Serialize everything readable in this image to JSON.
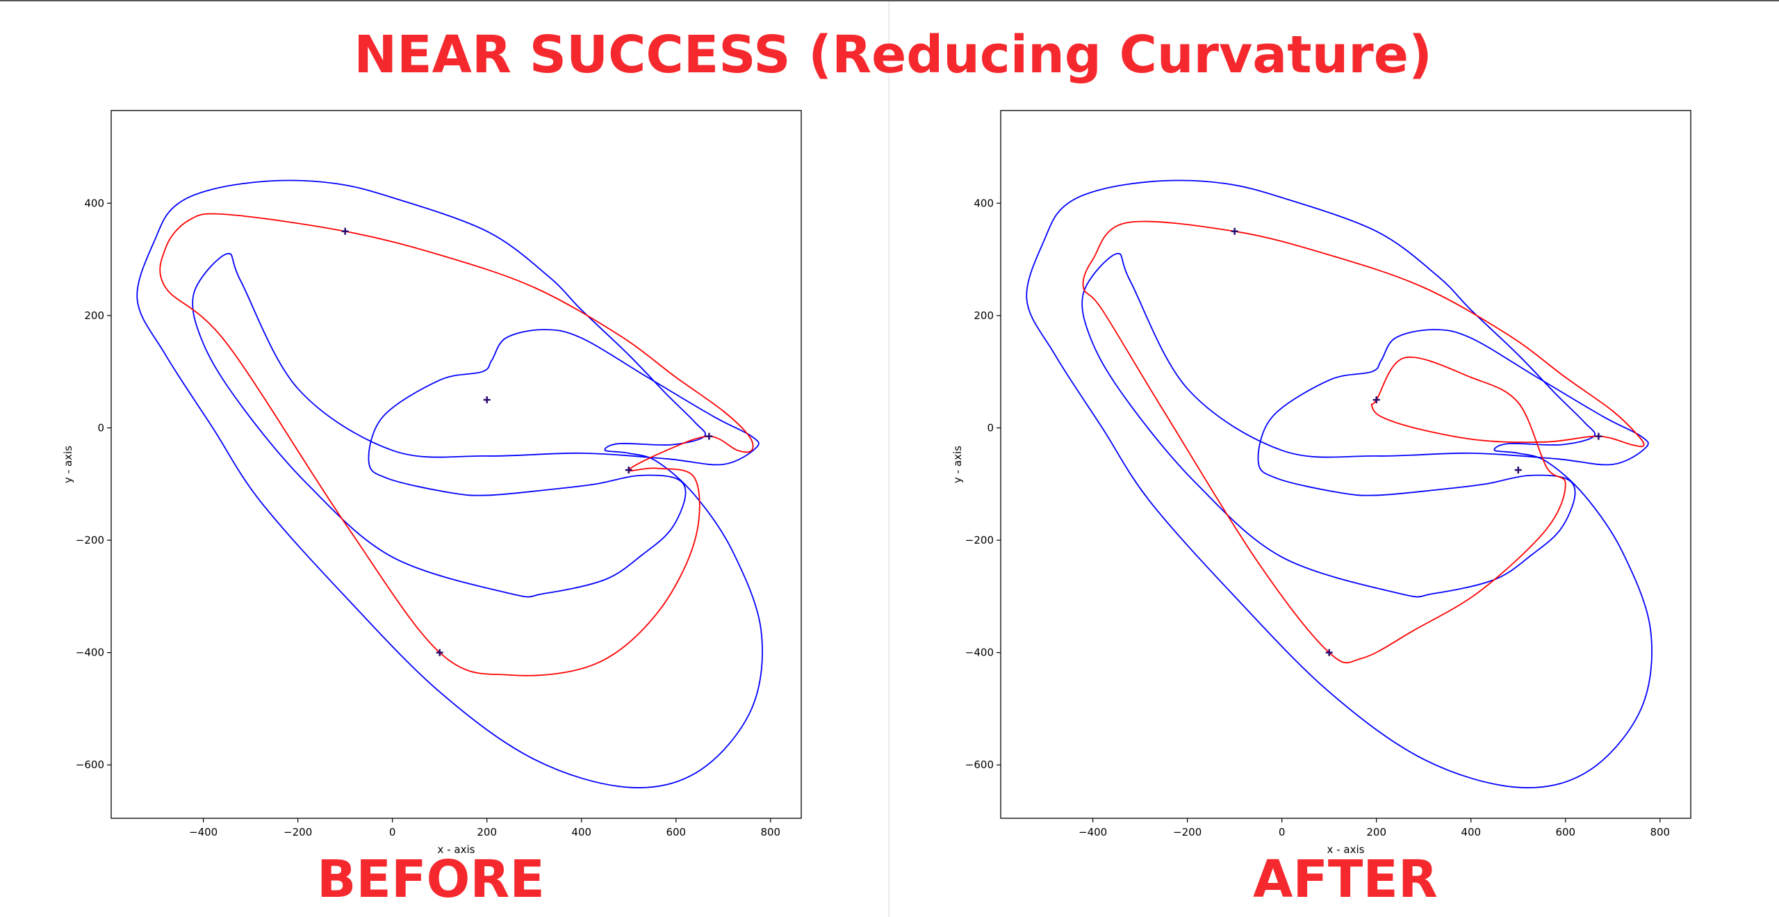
{
  "figure": {
    "title": "NEAR SUCCESS (Reducing Curvature)",
    "title_color": "#f5282d",
    "boundary_color": "#0000ff",
    "path_color": "#ff0000",
    "marker_color": "#2a0a6e"
  },
  "chart_data": [
    {
      "type": "line",
      "caption": "BEFORE",
      "xlabel": "x - axis",
      "ylabel": "y - axis",
      "xlim": [
        -595,
        865
      ],
      "ylim": [
        -695,
        565
      ],
      "xticks": [
        -400,
        -200,
        0,
        200,
        400,
        600,
        800
      ],
      "yticks": [
        400,
        200,
        0,
        -200,
        -400,
        -600
      ],
      "xtick_labels": [
        "−400",
        "−200",
        "0",
        "200",
        "400",
        "600",
        "800"
      ],
      "ytick_labels": [
        "400",
        "200",
        "0",
        "−200",
        "−400",
        "−600"
      ],
      "grid": false,
      "series": [
        {
          "role": "outer-boundary",
          "closed": true,
          "x": [
            -500,
            -540,
            -480,
            -380,
            -280,
            -100,
            100,
            300,
            500,
            650,
            760,
            780,
            720,
            640,
            560,
            500,
            450,
            480,
            590,
            660,
            640,
            580,
            500,
            400,
            330,
            200,
            0,
            -120,
            -250,
            -380,
            -460
          ],
          "y": [
            340,
            230,
            130,
            0,
            -130,
            -300,
            -470,
            -590,
            -640,
            -610,
            -500,
            -360,
            -220,
            -120,
            -60,
            -45,
            -40,
            -28,
            -30,
            -15,
            10,
            60,
            130,
            210,
            270,
            350,
            410,
            435,
            440,
            425,
            395
          ]
        },
        {
          "role": "inner-boundary",
          "closed": true,
          "x": [
            -350,
            -420,
            -400,
            -320,
            -180,
            0,
            250,
            320,
            450,
            530,
            590,
            620,
            600,
            520,
            430,
            330,
            200,
            120,
            -10,
            -50,
            -20,
            100,
            190,
            210,
            240,
            320,
            400,
            540,
            680,
            760,
            770,
            700,
            580,
            400,
            200,
            0,
            -200,
            -320
          ],
          "y": [
            310,
            240,
            150,
            40,
            -100,
            -230,
            -295,
            -295,
            -270,
            -225,
            -180,
            -120,
            -90,
            -85,
            -100,
            -110,
            -120,
            -115,
            -90,
            -60,
            20,
            85,
            100,
            120,
            160,
            175,
            160,
            90,
            20,
            -15,
            -35,
            -65,
            -55,
            -45,
            -50,
            -40,
            70,
            260
          ]
        },
        {
          "role": "planned-path",
          "closed": true,
          "x": [
            -100,
            100,
            300,
            480,
            600,
            700,
            755,
            760,
            730,
            670,
            580,
            500,
            560,
            640,
            640,
            560,
            430,
            250,
            100,
            -100,
            -350,
            -480,
            -480,
            -430,
            -350
          ],
          "y": [
            350,
            308,
            250,
            165,
            90,
            30,
            -15,
            -40,
            -40,
            -15,
            -40,
            -75,
            -72,
            -90,
            -200,
            -330,
            -420,
            -440,
            -400,
            -170,
            150,
            250,
            320,
            370,
            380
          ]
        },
        {
          "role": "waypoints",
          "closed": false,
          "x": [
            -100,
            200,
            670,
            500,
            100
          ],
          "y": [
            350,
            50,
            -15,
            -75,
            -400
          ]
        }
      ]
    },
    {
      "type": "line",
      "caption": "AFTER",
      "xlabel": "x - axis",
      "ylabel": "y - axis",
      "xlim": [
        -595,
        865
      ],
      "ylim": [
        -695,
        565
      ],
      "xticks": [
        -400,
        -200,
        0,
        200,
        400,
        600,
        800
      ],
      "yticks": [
        400,
        200,
        0,
        -200,
        -400,
        -600
      ],
      "xtick_labels": [
        "−400",
        "−200",
        "0",
        "200",
        "400",
        "600",
        "800"
      ],
      "ytick_labels": [
        "400",
        "200",
        "0",
        "−200",
        "−400",
        "−600"
      ],
      "grid": false,
      "series": [
        {
          "role": "outer-boundary",
          "closed": true,
          "x": [
            -500,
            -540,
            -480,
            -380,
            -280,
            -100,
            100,
            300,
            500,
            650,
            760,
            780,
            720,
            640,
            560,
            500,
            450,
            480,
            590,
            660,
            640,
            580,
            500,
            400,
            330,
            200,
            0,
            -120,
            -250,
            -380,
            -460
          ],
          "y": [
            340,
            230,
            130,
            0,
            -130,
            -300,
            -470,
            -590,
            -640,
            -610,
            -500,
            -360,
            -220,
            -120,
            -60,
            -45,
            -40,
            -28,
            -30,
            -15,
            10,
            60,
            130,
            210,
            270,
            350,
            410,
            435,
            440,
            425,
            395
          ]
        },
        {
          "role": "inner-boundary",
          "closed": true,
          "x": [
            -350,
            -420,
            -400,
            -320,
            -180,
            0,
            250,
            320,
            450,
            530,
            590,
            620,
            600,
            520,
            430,
            330,
            200,
            120,
            -10,
            -50,
            -20,
            100,
            190,
            210,
            240,
            320,
            400,
            540,
            680,
            760,
            770,
            700,
            580,
            400,
            200,
            0,
            -200,
            -320
          ],
          "y": [
            310,
            240,
            150,
            40,
            -100,
            -230,
            -295,
            -295,
            -270,
            -225,
            -180,
            -120,
            -90,
            -85,
            -100,
            -110,
            -120,
            -115,
            -90,
            -60,
            20,
            85,
            100,
            120,
            160,
            175,
            160,
            90,
            20,
            -15,
            -35,
            -65,
            -55,
            -45,
            -50,
            -40,
            70,
            260
          ]
        },
        {
          "role": "planned-path",
          "closed": true,
          "x": [
            -100,
            100,
            300,
            480,
            600,
            700,
            755,
            765,
            740,
            670,
            560,
            420,
            290,
            210,
            190,
            200,
            260,
            400,
            500,
            560,
            600,
            560,
            420,
            280,
            170,
            100,
            -50,
            -250,
            -380,
            -420,
            -400,
            -330
          ],
          "y": [
            350,
            308,
            250,
            165,
            90,
            30,
            -15,
            -32,
            -30,
            -15,
            -25,
            -22,
            -2,
            20,
            40,
            50,
            125,
            90,
            45,
            -70,
            -100,
            -180,
            -290,
            -360,
            -410,
            -400,
            -240,
            30,
            210,
            250,
            300,
            365
          ]
        },
        {
          "role": "waypoints",
          "closed": false,
          "x": [
            -100,
            200,
            670,
            500,
            100
          ],
          "y": [
            350,
            50,
            -15,
            -75,
            -400
          ]
        }
      ]
    }
  ]
}
